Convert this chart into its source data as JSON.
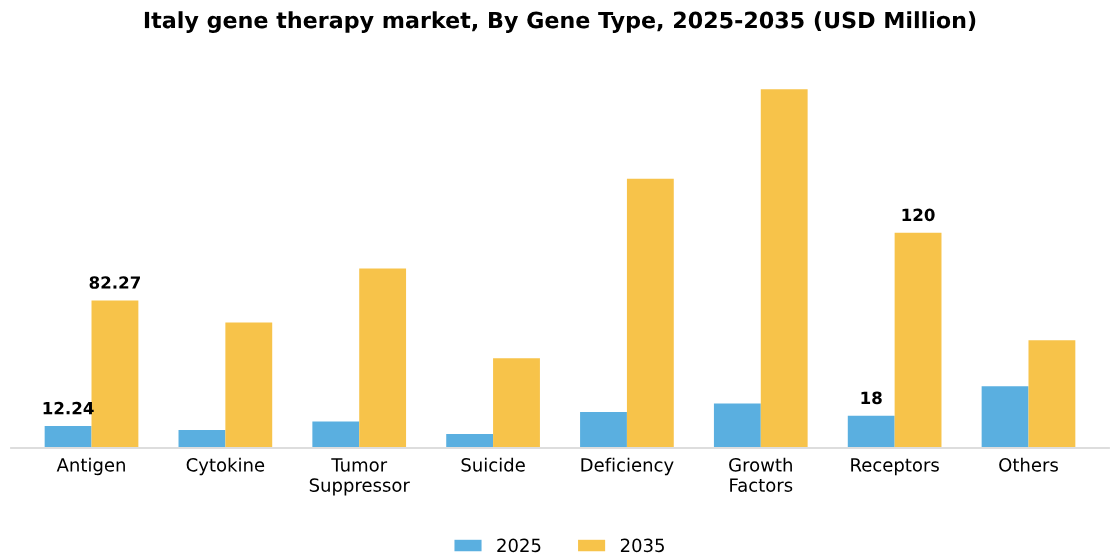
{
  "chart_data": {
    "type": "bar",
    "title": "Italy gene therapy market, By Gene Type, 2025-2035 (USD Million)",
    "categories": [
      "Antigen",
      "Cytokine",
      "Tumor\nSuppressor",
      "Suicide",
      "Deficiency",
      "Growth\nFactors",
      "Receptors",
      "Others"
    ],
    "series": [
      {
        "name": "2025",
        "color": "#5aafe0",
        "values": [
          12.24,
          10,
          14.8,
          7.8,
          20,
          24.8,
          18,
          34.4
        ],
        "value_labels": [
          "12.24",
          null,
          null,
          null,
          null,
          null,
          "18",
          null
        ]
      },
      {
        "name": "2035",
        "color": "#f7c34a",
        "values": [
          82.27,
          70,
          100,
          50,
          150,
          200,
          120,
          60
        ],
        "value_labels": [
          "82.27",
          null,
          null,
          null,
          null,
          null,
          "120",
          null
        ]
      }
    ],
    "tick_labels": "x",
    "grid": false,
    "legend": "bottom"
  }
}
